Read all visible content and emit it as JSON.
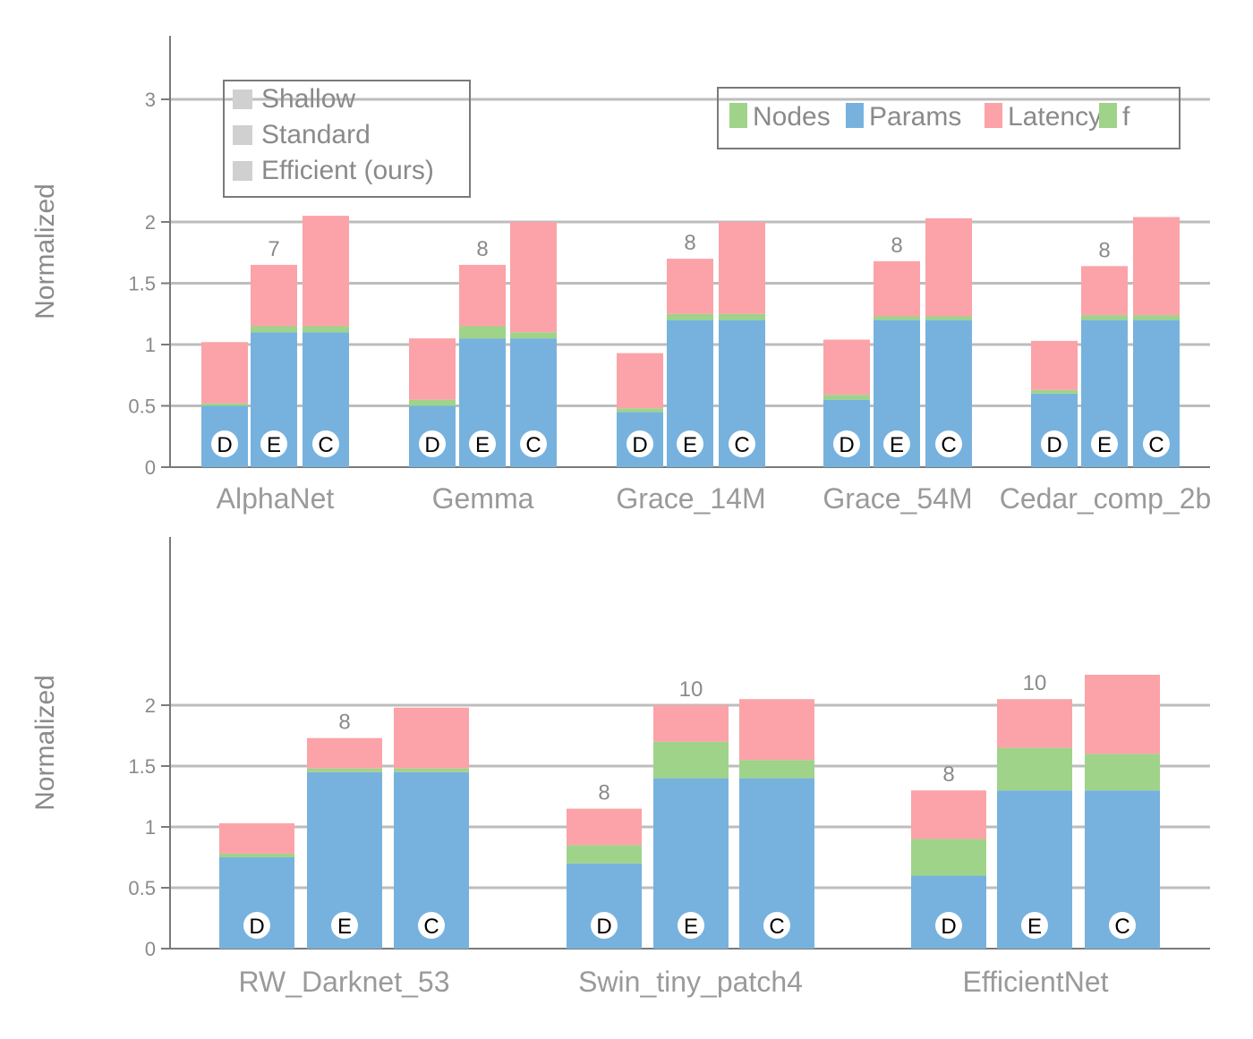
{
  "colors": {
    "nodes": "#9fd389",
    "params": "#77b2de",
    "latency": "#fba3a8",
    "f": "#9fd389",
    "grid": "#bdbdbd",
    "axis": "#7a7a7a",
    "text": "#8a8a8a",
    "bridge": "#9fb4c8",
    "shade": "#e7c6ca",
    "marker_fill": "#ffffff"
  },
  "legend_left": {
    "items": [
      "Shallow",
      "Standard",
      "Efficient (ours)"
    ]
  },
  "legend_right": {
    "items": [
      "Nodes",
      "Params",
      "Latency",
      "f"
    ]
  },
  "bar_letters": [
    "D",
    "E",
    "C"
  ],
  "chart_data": [
    {
      "type": "bar",
      "panel": "top",
      "ylabel": "Normalized",
      "yticks": [
        0,
        0.5,
        1,
        1.5,
        2,
        3
      ],
      "categories": [
        "AlphaNet",
        "Gemma",
        "Grace_14M",
        "Grace_54M",
        "Cedar_comp_2b"
      ],
      "bars": [
        [
          {
            "letter": "D",
            "params": 0.5,
            "nodes": 0.02,
            "latency": 0.5
          },
          {
            "letter": "E",
            "params": 1.1,
            "nodes": 0.05,
            "latency": 0.5,
            "annotation": "7"
          },
          {
            "letter": "C",
            "params": 1.1,
            "nodes": 0.05,
            "latency": 0.9
          }
        ],
        [
          {
            "letter": "D",
            "params": 0.5,
            "nodes": 0.05,
            "latency": 0.5
          },
          {
            "letter": "E",
            "params": 1.05,
            "nodes": 0.1,
            "latency": 0.5,
            "annotation": "8"
          },
          {
            "letter": "C",
            "params": 1.05,
            "nodes": 0.05,
            "latency": 0.9
          }
        ],
        [
          {
            "letter": "D",
            "params": 0.45,
            "nodes": 0.03,
            "latency": 0.45
          },
          {
            "letter": "E",
            "params": 1.2,
            "nodes": 0.05,
            "latency": 0.45,
            "annotation": "8"
          },
          {
            "letter": "C",
            "params": 1.2,
            "nodes": 0.05,
            "latency": 0.75
          }
        ],
        [
          {
            "letter": "D",
            "params": 0.55,
            "nodes": 0.04,
            "latency": 0.45
          },
          {
            "letter": "E",
            "params": 1.2,
            "nodes": 0.03,
            "latency": 0.45,
            "annotation": "8"
          },
          {
            "letter": "C",
            "params": 1.2,
            "nodes": 0.03,
            "latency": 0.8
          }
        ],
        [
          {
            "letter": "D",
            "params": 0.6,
            "nodes": 0.03,
            "latency": 0.4
          },
          {
            "letter": "E",
            "params": 1.2,
            "nodes": 0.04,
            "latency": 0.4,
            "annotation": "8"
          },
          {
            "letter": "C",
            "params": 1.2,
            "nodes": 0.04,
            "latency": 0.8
          }
        ]
      ]
    },
    {
      "type": "bar",
      "panel": "bottom",
      "ylabel": "Normalized",
      "yticks": [
        0,
        0.5,
        1,
        1.5,
        2
      ],
      "categories": [
        "RW_Darknet_53",
        "Swin_tiny_patch4",
        "EfficientNet"
      ],
      "bars": [
        [
          {
            "letter": "D",
            "params": 0.75,
            "nodes": 0.03,
            "latency": 0.25
          },
          {
            "letter": "E",
            "params": 1.45,
            "nodes": 0.03,
            "latency": 0.25,
            "annotation": "8"
          },
          {
            "letter": "C",
            "params": 1.45,
            "nodes": 0.03,
            "latency": 0.5
          }
        ],
        [
          {
            "letter": "D",
            "params": 0.7,
            "nodes": 0.15,
            "latency": 0.3,
            "annotation": "8"
          },
          {
            "letter": "E",
            "params": 1.4,
            "nodes": 0.3,
            "latency": 0.3,
            "annotation": "10"
          },
          {
            "letter": "C",
            "params": 1.4,
            "nodes": 0.15,
            "latency": 0.5
          }
        ],
        [
          {
            "letter": "D",
            "params": 0.6,
            "nodes": 0.3,
            "latency": 0.4,
            "annotation": "8"
          },
          {
            "letter": "E",
            "params": 1.3,
            "nodes": 0.35,
            "latency": 0.4,
            "annotation": "10"
          },
          {
            "letter": "C",
            "params": 1.3,
            "nodes": 0.3,
            "latency": 0.65
          }
        ]
      ]
    }
  ]
}
